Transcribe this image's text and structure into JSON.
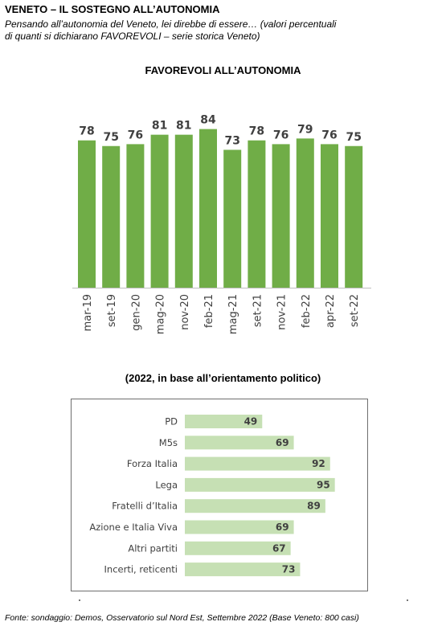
{
  "header": {
    "title": "VENETO – IL SOSTEGNO ALL’AUTONOMIA",
    "subtitle_line1": "Pensando all’autonomia del Veneto, lei direbbe di essere… (valori percentuali",
    "subtitle_line2": "di quanti si dichiarano FAVOREVOLI – serie storica Veneto)"
  },
  "footer": {
    "source": "Fonte: sondaggio: Demos, Osservatorio sul Nord Est, Settembre 2022 (Base Veneto: 800 casi)"
  },
  "colors": {
    "bar_green": "#70ad47",
    "bar_light_green": "#c6e0b4",
    "label_dark": "#404040"
  },
  "chart_data": [
    {
      "type": "bar",
      "title": "FAVOREVOLI ALL’AUTONOMIA",
      "categories": [
        "mar-19",
        "set-19",
        "gen-20",
        "mag-20",
        "nov-20",
        "feb-21",
        "mag-21",
        "set-21",
        "nov-21",
        "feb-22",
        "apr-22",
        "set-22"
      ],
      "values": [
        78,
        75,
        76,
        81,
        81,
        84,
        73,
        78,
        76,
        79,
        76,
        75
      ],
      "ylim": [
        0,
        100
      ],
      "data_labels": true,
      "grid": false,
      "legend": "none"
    },
    {
      "type": "bar",
      "orientation": "horizontal",
      "title": "(2022, in base all’orientamento politico)",
      "categories": [
        "PD",
        "M5s",
        "Forza Italia",
        "Lega",
        "Fratelli d’Italia",
        "Azione e Italia Viva",
        "Altri partiti",
        "Incerti, reticenti"
      ],
      "values": [
        49,
        69,
        92,
        95,
        89,
        69,
        67,
        73
      ],
      "xlim": [
        0,
        100
      ],
      "data_labels": true,
      "grid": false,
      "legend": "none"
    }
  ]
}
